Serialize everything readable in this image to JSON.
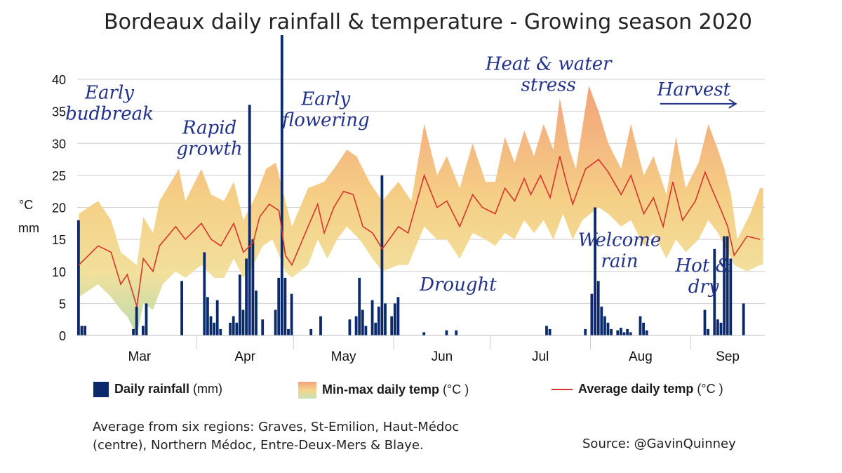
{
  "chart_data": {
    "type": "combo",
    "title": "Bordeaux daily rainfall & temperature - Growing season 2020",
    "ylabel_units": [
      "°C",
      "mm"
    ],
    "ylim": [
      0,
      40
    ],
    "yticks": [
      0,
      5,
      10,
      15,
      20,
      25,
      30,
      35,
      40
    ],
    "months": [
      "Mar",
      "Apr",
      "May",
      "Jun",
      "Jul",
      "Aug",
      "Sep"
    ],
    "month_starts": [
      "2020-03-01",
      "2020-04-01",
      "2020-05-01",
      "2020-06-01",
      "2020-07-01",
      "2020-08-01",
      "2020-09-01"
    ],
    "x_range": [
      "2020-02-24",
      "2020-09-23"
    ],
    "rain_keypoints": [
      [
        "2020-02-24",
        18
      ],
      [
        "2020-02-25",
        1.5
      ],
      [
        "2020-02-26",
        1.5
      ],
      [
        "2020-03-12",
        1
      ],
      [
        "2020-03-13",
        4.5
      ],
      [
        "2020-03-15",
        1.5
      ],
      [
        "2020-03-16",
        5
      ],
      [
        "2020-03-27",
        8.5
      ],
      [
        "2020-04-03",
        13
      ],
      [
        "2020-04-04",
        6
      ],
      [
        "2020-04-05",
        3
      ],
      [
        "2020-04-06",
        2
      ],
      [
        "2020-04-07",
        5.5
      ],
      [
        "2020-04-08",
        1
      ],
      [
        "2020-04-11",
        2
      ],
      [
        "2020-04-12",
        3
      ],
      [
        "2020-04-13",
        2
      ],
      [
        "2020-04-14",
        9.5
      ],
      [
        "2020-04-15",
        4
      ],
      [
        "2020-04-16",
        12
      ],
      [
        "2020-04-17",
        36
      ],
      [
        "2020-04-18",
        15
      ],
      [
        "2020-04-19",
        7
      ],
      [
        "2020-04-21",
        2.5
      ],
      [
        "2020-04-25",
        4
      ],
      [
        "2020-04-26",
        9
      ],
      [
        "2020-04-27",
        53
      ],
      [
        "2020-04-28",
        9
      ],
      [
        "2020-04-29",
        1
      ],
      [
        "2020-04-30",
        6.5
      ],
      [
        "2020-05-06",
        1
      ],
      [
        "2020-05-09",
        3
      ],
      [
        "2020-05-18",
        2.5
      ],
      [
        "2020-05-20",
        3
      ],
      [
        "2020-05-21",
        9
      ],
      [
        "2020-05-22",
        4
      ],
      [
        "2020-05-23",
        1.5
      ],
      [
        "2020-05-25",
        5.5
      ],
      [
        "2020-05-26",
        2
      ],
      [
        "2020-05-27",
        4.5
      ],
      [
        "2020-05-28",
        25
      ],
      [
        "2020-05-29",
        5
      ],
      [
        "2020-05-31",
        3
      ],
      [
        "2020-06-01",
        5
      ],
      [
        "2020-06-02",
        6
      ],
      [
        "2020-06-10",
        0.5
      ],
      [
        "2020-06-17",
        0.8
      ],
      [
        "2020-06-20",
        0.8
      ],
      [
        "2020-07-18",
        1.5
      ],
      [
        "2020-07-19",
        1
      ],
      [
        "2020-07-30",
        1
      ],
      [
        "2020-08-01",
        6.5
      ],
      [
        "2020-08-02",
        20
      ],
      [
        "2020-08-03",
        8.5
      ],
      [
        "2020-08-04",
        4.5
      ],
      [
        "2020-08-05",
        3
      ],
      [
        "2020-08-06",
        2
      ],
      [
        "2020-08-07",
        1
      ],
      [
        "2020-08-09",
        0.8
      ],
      [
        "2020-08-10",
        1.2
      ],
      [
        "2020-08-11",
        0.5
      ],
      [
        "2020-08-12",
        1
      ],
      [
        "2020-08-13",
        0.5
      ],
      [
        "2020-08-16",
        3
      ],
      [
        "2020-08-17",
        2
      ],
      [
        "2020-08-18",
        0.8
      ],
      [
        "2020-09-05",
        4
      ],
      [
        "2020-09-06",
        1
      ],
      [
        "2020-09-08",
        13.5
      ],
      [
        "2020-09-09",
        2.5
      ],
      [
        "2020-09-10",
        2
      ],
      [
        "2020-09-11",
        15.5
      ],
      [
        "2020-09-12",
        15.5
      ],
      [
        "2020-09-13",
        12
      ],
      [
        "2020-09-17",
        5
      ]
    ],
    "avg_temp_keypoints": [
      [
        "2020-02-24",
        11
      ],
      [
        "2020-03-01",
        14
      ],
      [
        "2020-03-05",
        13
      ],
      [
        "2020-03-08",
        8
      ],
      [
        "2020-03-10",
        9.5
      ],
      [
        "2020-03-13",
        4.5
      ],
      [
        "2020-03-15",
        12
      ],
      [
        "2020-03-18",
        10
      ],
      [
        "2020-03-20",
        14
      ],
      [
        "2020-03-25",
        17
      ],
      [
        "2020-03-28",
        15
      ],
      [
        "2020-04-02",
        17.5
      ],
      [
        "2020-04-05",
        15
      ],
      [
        "2020-04-08",
        14
      ],
      [
        "2020-04-12",
        17.5
      ],
      [
        "2020-04-15",
        13
      ],
      [
        "2020-04-18",
        14.5
      ],
      [
        "2020-04-20",
        18.5
      ],
      [
        "2020-04-23",
        20.5
      ],
      [
        "2020-04-26",
        19.5
      ],
      [
        "2020-04-28",
        12.5
      ],
      [
        "2020-04-30",
        11
      ],
      [
        "2020-05-05",
        17
      ],
      [
        "2020-05-08",
        20.5
      ],
      [
        "2020-05-10",
        16
      ],
      [
        "2020-05-13",
        20
      ],
      [
        "2020-05-16",
        22.5
      ],
      [
        "2020-05-19",
        22
      ],
      [
        "2020-05-22",
        17
      ],
      [
        "2020-05-25",
        16
      ],
      [
        "2020-05-28",
        13.5
      ],
      [
        "2020-06-02",
        17
      ],
      [
        "2020-06-05",
        16
      ],
      [
        "2020-06-10",
        25
      ],
      [
        "2020-06-14",
        20
      ],
      [
        "2020-06-17",
        21
      ],
      [
        "2020-06-21",
        17
      ],
      [
        "2020-06-25",
        22
      ],
      [
        "2020-06-28",
        20
      ],
      [
        "2020-07-02",
        19
      ],
      [
        "2020-07-05",
        23
      ],
      [
        "2020-07-08",
        21
      ],
      [
        "2020-07-11",
        24.5
      ],
      [
        "2020-07-13",
        22
      ],
      [
        "2020-07-16",
        25
      ],
      [
        "2020-07-19",
        21.5
      ],
      [
        "2020-07-22",
        28
      ],
      [
        "2020-07-24",
        24
      ],
      [
        "2020-07-26",
        20.5
      ],
      [
        "2020-07-30",
        26
      ],
      [
        "2020-08-03",
        27.5
      ],
      [
        "2020-08-06",
        25.5
      ],
      [
        "2020-08-10",
        22
      ],
      [
        "2020-08-13",
        25
      ],
      [
        "2020-08-17",
        19
      ],
      [
        "2020-08-20",
        21.5
      ],
      [
        "2020-08-23",
        17
      ],
      [
        "2020-08-26",
        24
      ],
      [
        "2020-08-29",
        18
      ],
      [
        "2020-09-02",
        21
      ],
      [
        "2020-09-05",
        25.5
      ],
      [
        "2020-09-07",
        23
      ],
      [
        "2020-09-10",
        19.5
      ],
      [
        "2020-09-12",
        17
      ],
      [
        "2020-09-14",
        12.5
      ],
      [
        "2020-09-18",
        15.5
      ],
      [
        "2020-09-22",
        15
      ]
    ],
    "max_temp_keypoints": [
      [
        "2020-02-24",
        19
      ],
      [
        "2020-03-01",
        21
      ],
      [
        "2020-03-05",
        18
      ],
      [
        "2020-03-08",
        13
      ],
      [
        "2020-03-13",
        11
      ],
      [
        "2020-03-15",
        18.5
      ],
      [
        "2020-03-18",
        16
      ],
      [
        "2020-03-20",
        21
      ],
      [
        "2020-03-26",
        26
      ],
      [
        "2020-03-28",
        21
      ],
      [
        "2020-04-02",
        26
      ],
      [
        "2020-04-05",
        22
      ],
      [
        "2020-04-09",
        21
      ],
      [
        "2020-04-12",
        24
      ],
      [
        "2020-04-15",
        18
      ],
      [
        "2020-04-19",
        22
      ],
      [
        "2020-04-22",
        26
      ],
      [
        "2020-04-25",
        27
      ],
      [
        "2020-04-28",
        21
      ],
      [
        "2020-04-30",
        17
      ],
      [
        "2020-05-05",
        23
      ],
      [
        "2020-05-10",
        24
      ],
      [
        "2020-05-13",
        26
      ],
      [
        "2020-05-17",
        29
      ],
      [
        "2020-05-20",
        28
      ],
      [
        "2020-05-24",
        24
      ],
      [
        "2020-05-28",
        21
      ],
      [
        "2020-06-02",
        24
      ],
      [
        "2020-06-06",
        21
      ],
      [
        "2020-06-10",
        33
      ],
      [
        "2020-06-14",
        25
      ],
      [
        "2020-06-17",
        28
      ],
      [
        "2020-06-21",
        23
      ],
      [
        "2020-06-25",
        30
      ],
      [
        "2020-06-29",
        24
      ],
      [
        "2020-07-02",
        24
      ],
      [
        "2020-07-05",
        31
      ],
      [
        "2020-07-08",
        27
      ],
      [
        "2020-07-11",
        32
      ],
      [
        "2020-07-14",
        28
      ],
      [
        "2020-07-17",
        33
      ],
      [
        "2020-07-20",
        29
      ],
      [
        "2020-07-22",
        37
      ],
      [
        "2020-07-25",
        29
      ],
      [
        "2020-07-27",
        26
      ],
      [
        "2020-07-31",
        39
      ],
      [
        "2020-08-03",
        35
      ],
      [
        "2020-08-06",
        30
      ],
      [
        "2020-08-10",
        26
      ],
      [
        "2020-08-13",
        33
      ],
      [
        "2020-08-17",
        25
      ],
      [
        "2020-08-20",
        28
      ],
      [
        "2020-08-24",
        22
      ],
      [
        "2020-08-27",
        31
      ],
      [
        "2020-08-30",
        23
      ],
      [
        "2020-09-03",
        27
      ],
      [
        "2020-09-06",
        33
      ],
      [
        "2020-09-09",
        29
      ],
      [
        "2020-09-11",
        26
      ],
      [
        "2020-09-13",
        22
      ],
      [
        "2020-09-15",
        15
      ],
      [
        "2020-09-19",
        19
      ],
      [
        "2020-09-22",
        23
      ]
    ],
    "min_temp_keypoints": [
      [
        "2020-02-24",
        6
      ],
      [
        "2020-03-01",
        8
      ],
      [
        "2020-03-05",
        6
      ],
      [
        "2020-03-08",
        4
      ],
      [
        "2020-03-10",
        3
      ],
      [
        "2020-03-13",
        0
      ],
      [
        "2020-03-15",
        5
      ],
      [
        "2020-03-18",
        4
      ],
      [
        "2020-03-21",
        8
      ],
      [
        "2020-03-25",
        10
      ],
      [
        "2020-03-28",
        9
      ],
      [
        "2020-04-02",
        11
      ],
      [
        "2020-04-06",
        9
      ],
      [
        "2020-04-09",
        9
      ],
      [
        "2020-04-12",
        12
      ],
      [
        "2020-04-15",
        9
      ],
      [
        "2020-04-18",
        11
      ],
      [
        "2020-04-21",
        14
      ],
      [
        "2020-04-24",
        15
      ],
      [
        "2020-04-28",
        10
      ],
      [
        "2020-04-30",
        9
      ],
      [
        "2020-05-05",
        11
      ],
      [
        "2020-05-08",
        15
      ],
      [
        "2020-05-11",
        12
      ],
      [
        "2020-05-14",
        15
      ],
      [
        "2020-05-17",
        17
      ],
      [
        "2020-05-21",
        15
      ],
      [
        "2020-05-25",
        12
      ],
      [
        "2020-05-28",
        10
      ],
      [
        "2020-06-02",
        11
      ],
      [
        "2020-06-05",
        11
      ],
      [
        "2020-06-10",
        17
      ],
      [
        "2020-06-14",
        15
      ],
      [
        "2020-06-17",
        15
      ],
      [
        "2020-06-21",
        12
      ],
      [
        "2020-06-25",
        16
      ],
      [
        "2020-06-29",
        15
      ],
      [
        "2020-07-02",
        14
      ],
      [
        "2020-07-05",
        16
      ],
      [
        "2020-07-08",
        15
      ],
      [
        "2020-07-11",
        18
      ],
      [
        "2020-07-14",
        16
      ],
      [
        "2020-07-17",
        18
      ],
      [
        "2020-07-20",
        15
      ],
      [
        "2020-07-23",
        19
      ],
      [
        "2020-07-26",
        15
      ],
      [
        "2020-07-29",
        18
      ],
      [
        "2020-08-03",
        20
      ],
      [
        "2020-08-06",
        19
      ],
      [
        "2020-08-10",
        17
      ],
      [
        "2020-08-13",
        18
      ],
      [
        "2020-08-17",
        14
      ],
      [
        "2020-08-20",
        16
      ],
      [
        "2020-08-24",
        12
      ],
      [
        "2020-08-27",
        15
      ],
      [
        "2020-08-30",
        13
      ],
      [
        "2020-09-03",
        15
      ],
      [
        "2020-09-06",
        18
      ],
      [
        "2020-09-09",
        16
      ],
      [
        "2020-09-12",
        13
      ],
      [
        "2020-09-14",
        11
      ],
      [
        "2020-09-18",
        10
      ],
      [
        "2020-09-22",
        11
      ]
    ],
    "annotations": [
      {
        "text": [
          "Early",
          "budbreak"
        ],
        "date": "2020-03-05",
        "temp": 37
      },
      {
        "text": [
          "Rapid",
          "growth"
        ],
        "date": "2020-04-05",
        "temp": 31.5
      },
      {
        "text": [
          "Early",
          "flowering"
        ],
        "date": "2020-05-11",
        "temp": 36
      },
      {
        "text": [
          "Heat & water",
          "stress"
        ],
        "date": "2020-07-19",
        "temp": 41.5
      },
      {
        "text": [
          "Harvest"
        ],
        "date": "2020-09-02",
        "temp": 37.5,
        "arrow": true
      },
      {
        "text": [
          "Drought"
        ],
        "date": "2020-06-21",
        "temp": 7
      },
      {
        "text": [
          "Welcome",
          "rain"
        ],
        "date": "2020-08-10",
        "temp": 14
      },
      {
        "text": [
          "Hot &",
          "dry"
        ],
        "date": "2020-09-05",
        "temp": 10
      }
    ],
    "legend": [
      {
        "label": "Daily rainfall",
        "unit": " (mm)",
        "type": "rain"
      },
      {
        "label": "Min-max daily temp",
        "unit": " (°C )",
        "type": "band"
      },
      {
        "label": "Average daily temp",
        "unit": " (°C )",
        "type": "line"
      }
    ],
    "colors": {
      "rain": "#0b2a6b",
      "avg": "#d9342b",
      "band_top": "#f3a27a",
      "band_mid": "#f5d58d",
      "band_low": "#b9dbb0",
      "grid": "#cfcfcf",
      "annotation": "#22318a"
    }
  },
  "note": [
    "Average from six regions: Graves, St-Emilion, Haut-Médoc",
    "(centre), Northern Médoc, Entre-Deux-Mers & Blaye."
  ],
  "source": "Source: @GavinQuinney"
}
